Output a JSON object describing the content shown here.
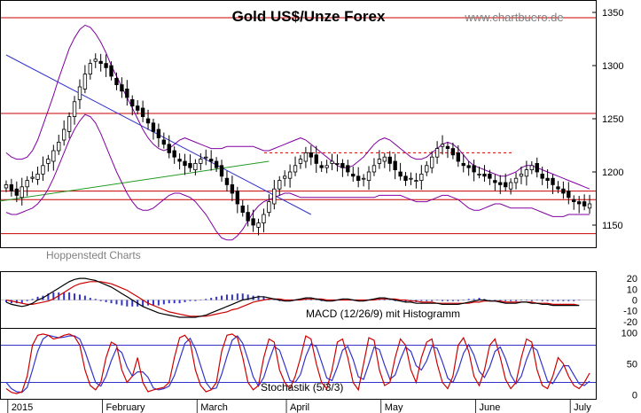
{
  "chart_data": [
    {
      "type": "candlestick",
      "title": "Gold US$/Unze Forex",
      "watermark": "www.chartbuero.de",
      "source_label": "Hoppenstedt Charts",
      "ylim": [
        1130,
        1360
      ],
      "yticks": [
        1150,
        1200,
        1250,
        1300,
        1350
      ],
      "x_months": [
        "2015",
        "February",
        "March",
        "April",
        "May",
        "June",
        "July"
      ],
      "horizontal_lines": {
        "solid": [
          1345,
          1255,
          1182,
          1174,
          1142
        ],
        "dashed": [
          1218
        ],
        "color": "#cc0000"
      },
      "trendlines": [
        {
          "color": "#3333cc",
          "from": [
            0,
            1310
          ],
          "to": [
            58,
            1160
          ]
        },
        {
          "color": "#229922",
          "from": [
            -2,
            1172
          ],
          "to": [
            50,
            1210
          ]
        }
      ],
      "price_close": [
        1188,
        1182,
        1178,
        1186,
        1192,
        1195,
        1198,
        1206,
        1212,
        1220,
        1228,
        1240,
        1252,
        1266,
        1280,
        1292,
        1302,
        1306,
        1302,
        1298,
        1290,
        1282,
        1276,
        1270,
        1262,
        1258,
        1252,
        1246,
        1238,
        1232,
        1226,
        1218,
        1214,
        1210,
        1206,
        1204,
        1208,
        1212,
        1214,
        1210,
        1204,
        1196,
        1188,
        1180,
        1170,
        1162,
        1154,
        1150,
        1152,
        1160,
        1172,
        1184,
        1192,
        1196,
        1200,
        1206,
        1212,
        1218,
        1214,
        1208,
        1204,
        1206,
        1210,
        1208,
        1204,
        1200,
        1196,
        1192,
        1194,
        1200,
        1206,
        1212,
        1214,
        1208,
        1202,
        1196,
        1192,
        1194,
        1192,
        1198,
        1206,
        1214,
        1222,
        1226,
        1222,
        1216,
        1210,
        1206,
        1204,
        1200,
        1198,
        1196,
        1194,
        1190,
        1188,
        1186,
        1190,
        1194,
        1198,
        1202,
        1206,
        1200,
        1194,
        1192,
        1188,
        1184,
        1180,
        1176,
        1172,
        1170,
        1168,
        1170
      ],
      "bollinger_color": "#8000a0",
      "bollinger_upper": [
        1218,
        1214,
        1212,
        1212,
        1214,
        1220,
        1230,
        1244,
        1258,
        1272,
        1288,
        1302,
        1316,
        1326,
        1334,
        1338,
        1336,
        1330,
        1322,
        1312,
        1300,
        1290,
        1280,
        1270,
        1260,
        1250,
        1240,
        1232,
        1226,
        1222,
        1220,
        1222,
        1226,
        1230,
        1232,
        1230,
        1228,
        1226,
        1224,
        1222,
        1222,
        1222,
        1224,
        1224,
        1224,
        1224,
        1224,
        1224,
        1222,
        1220,
        1220,
        1222,
        1224,
        1226,
        1228,
        1230,
        1232,
        1230,
        1226,
        1222,
        1218,
        1214,
        1210,
        1206,
        1204,
        1204,
        1206,
        1210,
        1214,
        1220,
        1226,
        1230,
        1232,
        1230,
        1226,
        1222,
        1218,
        1214,
        1212,
        1212,
        1214,
        1218,
        1222,
        1226,
        1228,
        1226,
        1222,
        1216,
        1210,
        1206,
        1204,
        1202,
        1200,
        1198,
        1196,
        1196,
        1198,
        1200,
        1204,
        1206,
        1206,
        1204,
        1202,
        1200,
        1198,
        1196,
        1194,
        1192,
        1190,
        1188,
        1186,
        1184
      ],
      "bollinger_lower": [
        1162,
        1160,
        1160,
        1162,
        1164,
        1166,
        1170,
        1176,
        1184,
        1194,
        1206,
        1218,
        1230,
        1240,
        1248,
        1254,
        1252,
        1246,
        1236,
        1224,
        1212,
        1200,
        1190,
        1180,
        1172,
        1166,
        1164,
        1164,
        1166,
        1170,
        1174,
        1178,
        1180,
        1180,
        1178,
        1176,
        1172,
        1166,
        1160,
        1152,
        1144,
        1138,
        1136,
        1136,
        1140,
        1146,
        1154,
        1162,
        1168,
        1172,
        1174,
        1176,
        1178,
        1180,
        1180,
        1178,
        1176,
        1176,
        1176,
        1176,
        1176,
        1176,
        1176,
        1176,
        1176,
        1176,
        1176,
        1176,
        1176,
        1176,
        1176,
        1178,
        1178,
        1178,
        1178,
        1178,
        1176,
        1174,
        1172,
        1172,
        1172,
        1174,
        1176,
        1178,
        1178,
        1176,
        1174,
        1170,
        1166,
        1164,
        1164,
        1166,
        1168,
        1170,
        1170,
        1168,
        1166,
        1166,
        1166,
        1166,
        1166,
        1164,
        1162,
        1160,
        1158,
        1158,
        1158,
        1160,
        1160,
        1160,
        1160,
        1160
      ]
    },
    {
      "type": "line",
      "title": "MACD (12/26/9) mit Histogramm",
      "ylim": [
        -25,
        25
      ],
      "yticks": [
        20,
        10,
        0,
        -10,
        -20
      ],
      "macd_color": "#000000",
      "signal_color": "#cc0000",
      "histogram_color": "#3333cc",
      "macd": [
        -2,
        -4,
        -5,
        -6,
        -5,
        -3,
        0,
        2,
        5,
        8,
        11,
        14,
        17,
        19,
        20,
        20,
        19,
        18,
        16,
        14,
        12,
        9,
        6,
        3,
        0,
        -3,
        -6,
        -8,
        -10,
        -12,
        -13,
        -14,
        -15,
        -16,
        -16,
        -16,
        -16,
        -15,
        -14,
        -12,
        -10,
        -8,
        -6,
        -4,
        -2,
        0,
        1,
        2,
        3,
        3,
        2,
        1,
        0,
        -1,
        -1,
        0,
        1,
        2,
        2,
        1,
        0,
        -1,
        -1,
        0,
        1,
        1,
        0,
        -1,
        -1,
        0,
        1,
        2,
        2,
        1,
        0,
        -1,
        -2,
        -2,
        -3,
        -3,
        -3,
        -3,
        -3,
        -4,
        -4,
        -4,
        -4,
        -3,
        -2,
        -1,
        0,
        0,
        -1,
        -1,
        -2,
        -3,
        -3,
        -3,
        -2,
        -2,
        -3,
        -3,
        -4,
        -4,
        -5,
        -5,
        -5,
        -5,
        -5,
        -5
      ],
      "signal": [
        0,
        -1,
        -2,
        -3,
        -4,
        -4,
        -3,
        -2,
        -1,
        1,
        4,
        7,
        10,
        13,
        15,
        16,
        17,
        17,
        17,
        16,
        15,
        13,
        11,
        9,
        6,
        3,
        0,
        -3,
        -5,
        -7,
        -9,
        -11,
        -12,
        -13,
        -14,
        -15,
        -15,
        -15,
        -15,
        -14,
        -13,
        -12,
        -11,
        -9,
        -8,
        -6,
        -4,
        -2,
        -1,
        0,
        1,
        1,
        1,
        0,
        0,
        0,
        0,
        1,
        1,
        1,
        1,
        0,
        0,
        0,
        0,
        0,
        0,
        0,
        0,
        0,
        0,
        1,
        1,
        1,
        1,
        0,
        0,
        -1,
        -1,
        -2,
        -2,
        -2,
        -3,
        -3,
        -3,
        -3,
        -3,
        -3,
        -3,
        -2,
        -2,
        -1,
        -1,
        -1,
        -1,
        -2,
        -2,
        -2,
        -2,
        -2,
        -2,
        -3,
        -3,
        -3,
        -4,
        -4,
        -4,
        -4,
        -4,
        -5
      ]
    },
    {
      "type": "line",
      "title": "Stochastik (5/3/3)",
      "ylim": [
        -5,
        105
      ],
      "yticks": [
        100,
        50,
        0
      ],
      "bands": [
        80,
        20
      ],
      "k_color": "#cc0000",
      "d_color": "#3333cc",
      "k": [
        10,
        4,
        2,
        5,
        30,
        80,
        96,
        98,
        96,
        90,
        92,
        96,
        98,
        94,
        80,
        40,
        15,
        8,
        20,
        60,
        85,
        80,
        40,
        20,
        30,
        60,
        20,
        5,
        8,
        10,
        12,
        20,
        60,
        92,
        96,
        85,
        40,
        15,
        5,
        8,
        20,
        70,
        96,
        98,
        92,
        60,
        20,
        8,
        15,
        60,
        90,
        85,
        40,
        20,
        10,
        30,
        60,
        95,
        90,
        50,
        20,
        10,
        40,
        85,
        90,
        60,
        20,
        8,
        50,
        92,
        88,
        40,
        15,
        20,
        60,
        90,
        80,
        40,
        20,
        60,
        85,
        90,
        50,
        20,
        10,
        30,
        80,
        92,
        70,
        30,
        15,
        40,
        80,
        90,
        60,
        25,
        10,
        20,
        60,
        90,
        85,
        40,
        15,
        10,
        30,
        60,
        50,
        30,
        15,
        10,
        20,
        35
      ],
      "d": [
        20,
        10,
        5,
        4,
        12,
        40,
        70,
        90,
        96,
        94,
        92,
        93,
        95,
        95,
        90,
        70,
        45,
        20,
        14,
        30,
        55,
        75,
        68,
        45,
        30,
        37,
        37,
        28,
        11,
        8,
        10,
        14,
        31,
        57,
        83,
        91,
        74,
        47,
        20,
        9,
        11,
        33,
        62,
        88,
        95,
        83,
        57,
        29,
        14,
        28,
        55,
        78,
        72,
        48,
        23,
        20,
        33,
        62,
        82,
        78,
        53,
        27,
        23,
        45,
        72,
        78,
        57,
        29,
        25,
        50,
        77,
        73,
        48,
        25,
        32,
        57,
        77,
        70,
        47,
        40,
        55,
        78,
        75,
        53,
        27,
        20,
        40,
        67,
        81,
        64,
        38,
        28,
        45,
        70,
        77,
        58,
        32,
        18,
        30,
        57,
        78,
        72,
        47,
        22,
        18,
        33,
        47,
        47,
        32,
        18,
        15,
        22
      ]
    }
  ]
}
